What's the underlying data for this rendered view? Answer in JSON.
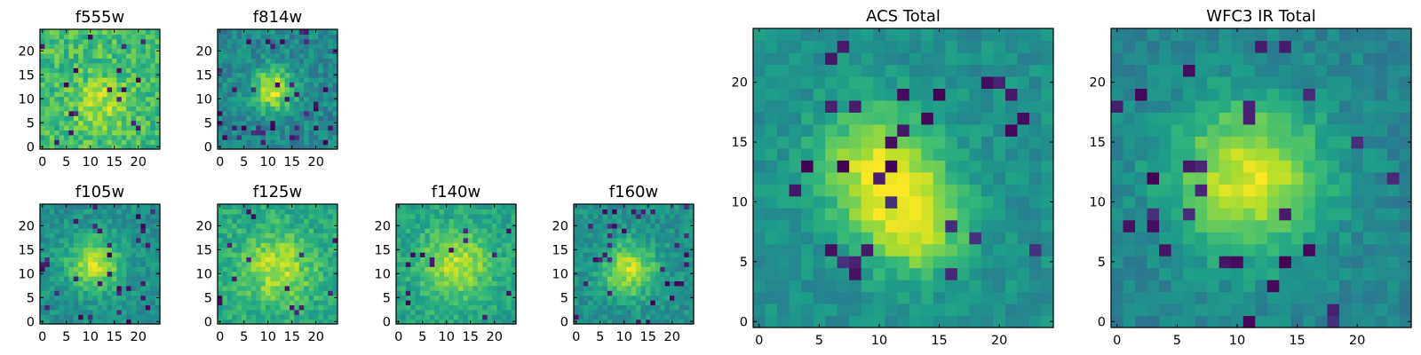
{
  "chart_data": [
    {
      "type": "heatmap",
      "title": "f555w",
      "colormap": "viridis",
      "grid": false,
      "xlim": [
        -0.5,
        24.5
      ],
      "ylim": [
        -0.5,
        24.5
      ],
      "xticks": [
        0,
        5,
        10,
        15,
        20
      ],
      "yticks": [
        0,
        5,
        10,
        15,
        20
      ],
      "blob": {
        "peaks": [
          {
            "x": 12,
            "y": 9,
            "amp": 0.2,
            "sigma": 4
          }
        ],
        "base": 0.68,
        "noise": 0.28,
        "dark_fraction": 0.03
      }
    },
    {
      "type": "heatmap",
      "title": "f814w",
      "colormap": "viridis",
      "grid": false,
      "xlim": [
        -0.5,
        24.5
      ],
      "ylim": [
        -0.5,
        24.5
      ],
      "xticks": [
        0,
        5,
        10,
        15,
        20
      ],
      "yticks": [
        0,
        5,
        10,
        15,
        20
      ],
      "blob": {
        "peaks": [
          {
            "x": 11,
            "y": 12,
            "amp": 0.48,
            "sigma": 3.2
          }
        ],
        "base": 0.46,
        "noise": 0.24,
        "dark_fraction": 0.06
      }
    },
    {
      "type": "heatmap",
      "title": "f105w",
      "colormap": "viridis",
      "grid": false,
      "xlim": [
        -0.5,
        24.5
      ],
      "ylim": [
        -0.5,
        24.5
      ],
      "xticks": [
        0,
        5,
        10,
        15,
        20
      ],
      "yticks": [
        0,
        5,
        10,
        15,
        20
      ],
      "blob": {
        "peaks": [
          {
            "x": 11,
            "y": 12,
            "amp": 0.4,
            "sigma": 4
          }
        ],
        "base": 0.5,
        "noise": 0.2,
        "dark_fraction": 0.04
      }
    },
    {
      "type": "heatmap",
      "title": "f125w",
      "colormap": "viridis",
      "grid": false,
      "xlim": [
        -0.5,
        24.5
      ],
      "ylim": [
        -0.5,
        24.5
      ],
      "xticks": [
        0,
        5,
        10,
        15,
        20
      ],
      "yticks": [
        0,
        5,
        10,
        15,
        20
      ],
      "blob": {
        "peaks": [
          {
            "x": 12,
            "y": 11,
            "amp": 0.3,
            "sigma": 5
          }
        ],
        "base": 0.6,
        "noise": 0.22,
        "dark_fraction": 0.03
      }
    },
    {
      "type": "heatmap",
      "title": "f140w",
      "colormap": "viridis",
      "grid": false,
      "xlim": [
        -0.5,
        24.5
      ],
      "ylim": [
        -0.5,
        24.5
      ],
      "xticks": [
        0,
        5,
        10,
        15,
        20
      ],
      "yticks": [
        0,
        5,
        10,
        15,
        20
      ],
      "blob": {
        "peaks": [
          {
            "x": 12,
            "y": 12,
            "amp": 0.32,
            "sigma": 5
          }
        ],
        "base": 0.58,
        "noise": 0.2,
        "dark_fraction": 0.02
      }
    },
    {
      "type": "heatmap",
      "title": "f160w",
      "colormap": "viridis",
      "grid": false,
      "xlim": [
        -0.5,
        24.5
      ],
      "ylim": [
        -0.5,
        24.5
      ],
      "xticks": [
        0,
        5,
        10,
        15,
        20
      ],
      "yticks": [
        0,
        5,
        10,
        15,
        20
      ],
      "blob": {
        "peaks": [
          {
            "x": 11,
            "y": 11,
            "amp": 0.4,
            "sigma": 4
          }
        ],
        "base": 0.5,
        "noise": 0.2,
        "dark_fraction": 0.04
      }
    },
    {
      "type": "heatmap",
      "title": "ACS Total",
      "colormap": "viridis",
      "grid": false,
      "xlim": [
        -0.5,
        24.5
      ],
      "ylim": [
        -0.5,
        24.5
      ],
      "xticks": [
        0,
        5,
        10,
        15,
        20
      ],
      "yticks": [
        0,
        5,
        10,
        15,
        20
      ],
      "blob": {
        "peaks": [
          {
            "x": 10,
            "y": 13,
            "amp": 0.42,
            "sigma": 3.5
          },
          {
            "x": 13,
            "y": 8,
            "amp": 0.38,
            "sigma": 3
          }
        ],
        "base": 0.5,
        "noise": 0.15,
        "dark_fraction": 0.04
      }
    },
    {
      "type": "heatmap",
      "title": "WFC3 IR Total",
      "colormap": "viridis",
      "grid": false,
      "xlim": [
        -0.5,
        24.5
      ],
      "ylim": [
        -0.5,
        24.5
      ],
      "xticks": [
        0,
        5,
        10,
        15,
        20
      ],
      "yticks": [
        0,
        5,
        10,
        15,
        20
      ],
      "blob": {
        "peaks": [
          {
            "x": 11,
            "y": 12,
            "amp": 0.5,
            "sigma": 4.5
          }
        ],
        "base": 0.45,
        "noise": 0.15,
        "dark_fraction": 0.04
      }
    }
  ]
}
